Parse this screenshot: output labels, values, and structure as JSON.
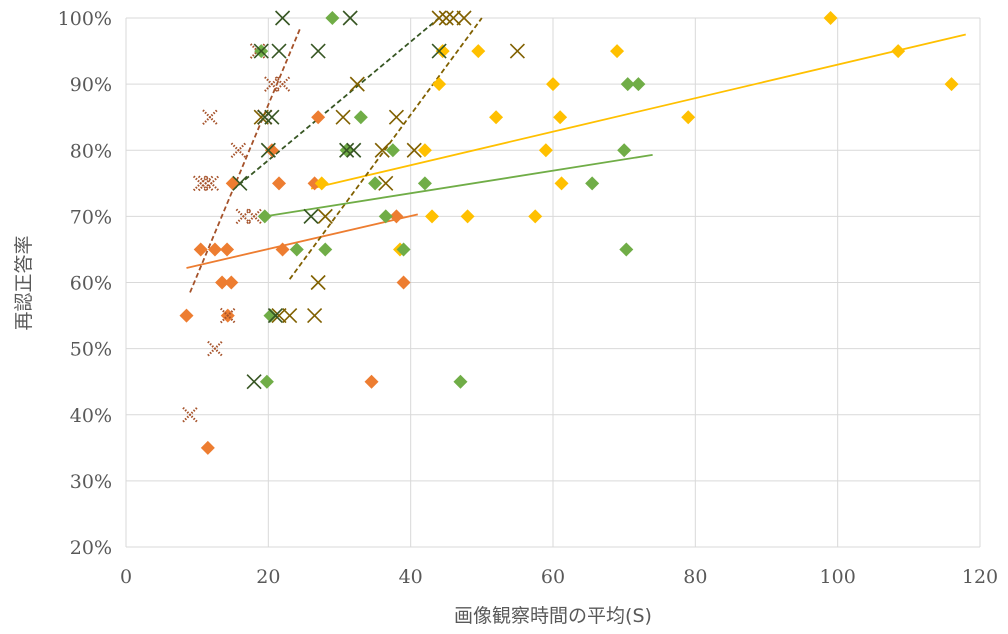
{
  "chart_data": {
    "type": "scatter",
    "title": "",
    "xlabel": "画像観察時間の平均(S)",
    "ylabel": "再認正答率",
    "xlim": [
      0,
      120
    ],
    "ylim": [
      20,
      100
    ],
    "x_ticks": [
      0,
      20,
      40,
      60,
      80,
      100,
      120
    ],
    "x_tick_labels": [
      "0",
      "20",
      "40",
      "60",
      "80",
      "100",
      "120"
    ],
    "y_ticks": [
      20,
      30,
      40,
      50,
      60,
      70,
      80,
      90,
      100
    ],
    "y_tick_labels": [
      "20%",
      "30%",
      "40%",
      "50%",
      "60%",
      "70%",
      "80%",
      "90%",
      "100%"
    ],
    "grid": true,
    "legend": "none",
    "series": [
      {
        "marker": "diamond",
        "color": "#ED7D31",
        "points": [
          [
            8.5,
            55
          ],
          [
            10.5,
            65
          ],
          [
            11.5,
            35
          ],
          [
            12.5,
            65
          ],
          [
            13.5,
            60
          ],
          [
            14.2,
            65
          ],
          [
            14.3,
            55
          ],
          [
            14.8,
            60
          ],
          [
            15,
            75
          ],
          [
            20.5,
            80
          ],
          [
            21.5,
            75
          ],
          [
            22,
            65
          ],
          [
            26.5,
            75
          ],
          [
            27,
            85
          ],
          [
            34.5,
            45
          ],
          [
            38,
            70
          ],
          [
            39,
            60
          ]
        ],
        "trendline": {
          "style": "solid",
          "x": [
            8.5,
            41
          ],
          "y": [
            62.2,
            70.3
          ]
        }
      },
      {
        "marker": "x-dotted",
        "color": "#A5522A",
        "points": [
          [
            9,
            40
          ],
          [
            10.5,
            75
          ],
          [
            11.2,
            75
          ],
          [
            11.8,
            85
          ],
          [
            12,
            75
          ],
          [
            12.5,
            50
          ],
          [
            14.3,
            55
          ],
          [
            15.8,
            80
          ],
          [
            16.5,
            70
          ],
          [
            18,
            70
          ],
          [
            18.5,
            95
          ],
          [
            19.5,
            85
          ],
          [
            20.5,
            90
          ],
          [
            22,
            90
          ]
        ],
        "trendline": {
          "style": "dashed",
          "x": [
            9,
            24.5
          ],
          "y": [
            58.5,
            98.5
          ]
        }
      },
      {
        "marker": "diamond",
        "color": "#FFC000",
        "points": [
          [
            27.5,
            75
          ],
          [
            38.5,
            65
          ],
          [
            42,
            80
          ],
          [
            43,
            70
          ],
          [
            44,
            90
          ],
          [
            44.5,
            95
          ],
          [
            48,
            70
          ],
          [
            49.5,
            95
          ],
          [
            52,
            85
          ],
          [
            57.5,
            70
          ],
          [
            59,
            80
          ],
          [
            60,
            90
          ],
          [
            61,
            85
          ],
          [
            61.2,
            75
          ],
          [
            69,
            95
          ],
          [
            79,
            85
          ],
          [
            99,
            100
          ],
          [
            108.5,
            95
          ],
          [
            116,
            90
          ]
        ],
        "trendline": {
          "style": "solid",
          "x": [
            26,
            118
          ],
          "y": [
            74.2,
            97.5
          ]
        }
      },
      {
        "marker": "x",
        "color": "#806000",
        "points": [
          [
            19,
            85
          ],
          [
            21.5,
            55
          ],
          [
            23,
            55
          ],
          [
            26.5,
            55
          ],
          [
            27,
            60
          ],
          [
            28,
            70
          ],
          [
            30.5,
            85
          ],
          [
            32.5,
            90
          ],
          [
            36,
            80
          ],
          [
            36.5,
            75
          ],
          [
            38,
            85
          ],
          [
            40.5,
            80
          ],
          [
            44,
            100
          ],
          [
            45,
            100
          ],
          [
            46,
            100
          ],
          [
            47.5,
            100
          ],
          [
            55,
            95
          ]
        ],
        "trendline": {
          "style": "dashed",
          "x": [
            23,
            50
          ],
          "y": [
            60.5,
            100
          ]
        }
      },
      {
        "marker": "diamond",
        "color": "#70AD47",
        "points": [
          [
            19,
            95
          ],
          [
            19.5,
            70
          ],
          [
            19.8,
            45
          ],
          [
            20.3,
            55
          ],
          [
            24,
            65
          ],
          [
            28,
            65
          ],
          [
            29,
            100
          ],
          [
            31,
            80
          ],
          [
            33,
            85
          ],
          [
            35,
            75
          ],
          [
            36.5,
            70
          ],
          [
            37.5,
            80
          ],
          [
            39,
            65
          ],
          [
            42,
            75
          ],
          [
            47,
            45
          ],
          [
            65.5,
            75
          ],
          [
            70,
            80
          ],
          [
            70.3,
            65
          ],
          [
            70.5,
            90
          ],
          [
            72,
            90
          ]
        ],
        "trendline": {
          "style": "solid",
          "x": [
            19.5,
            74
          ],
          "y": [
            70,
            79.3
          ]
        }
      },
      {
        "marker": "x",
        "color": "#375623",
        "points": [
          [
            16,
            75
          ],
          [
            18,
            45
          ],
          [
            19,
            95
          ],
          [
            19.5,
            85
          ],
          [
            20,
            80
          ],
          [
            20.5,
            85
          ],
          [
            21,
            55
          ],
          [
            21.5,
            95
          ],
          [
            22,
            100
          ],
          [
            26,
            70
          ],
          [
            27,
            95
          ],
          [
            31,
            80
          ],
          [
            31.5,
            100
          ],
          [
            32,
            80
          ],
          [
            44,
            95
          ]
        ],
        "trendline": {
          "style": "dashed",
          "x": [
            15,
            44
          ],
          "y": [
            74,
            100
          ]
        }
      }
    ]
  }
}
